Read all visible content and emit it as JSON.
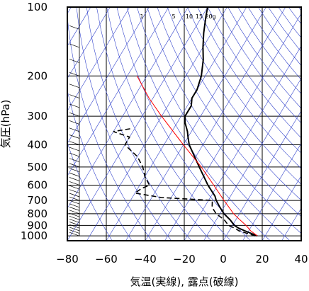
{
  "chart_data": {
    "type": "line",
    "subtype": "skew-t log-p thermodynamic diagram",
    "xlabel": "気温(実線), 露点(破線)",
    "ylabel": "気圧(hPa)",
    "xlim": [
      -80,
      40
    ],
    "ylim": [
      1050,
      100
    ],
    "y_scale": "log",
    "grid": true,
    "x_ticks": [
      -80,
      -60,
      -40,
      -20,
      0,
      20,
      40
    ],
    "y_ticks": [
      100,
      200,
      300,
      400,
      500,
      600,
      700,
      800,
      900,
      1000
    ],
    "mixing_ratio_labels": [
      "1",
      "5",
      "10",
      "15",
      "20g"
    ],
    "colors": {
      "temperature": "#000000",
      "dewpoint": "#000000",
      "parcel_path": "#ff0000",
      "isotherms_adiabats": "#3344cc",
      "grid": "#000000"
    },
    "series": [
      {
        "name": "気温",
        "style": "solid",
        "points": [
          {
            "p": 1000,
            "t": 16
          },
          {
            "p": 975,
            "t": 12
          },
          {
            "p": 950,
            "t": 8
          },
          {
            "p": 925,
            "t": 4
          },
          {
            "p": 900,
            "t": 1
          },
          {
            "p": 850,
            "t": -3
          },
          {
            "p": 800,
            "t": -8
          },
          {
            "p": 750,
            "t": -12
          },
          {
            "p": 700,
            "t": -16
          },
          {
            "p": 670,
            "t": -18
          },
          {
            "p": 600,
            "t": -25
          },
          {
            "p": 500,
            "t": -35
          },
          {
            "p": 400,
            "t": -47
          },
          {
            "p": 370,
            "t": -50
          },
          {
            "p": 350,
            "t": -52
          },
          {
            "p": 320,
            "t": -56
          },
          {
            "p": 300,
            "t": -58
          },
          {
            "p": 270,
            "t": -58
          },
          {
            "p": 250,
            "t": -60
          },
          {
            "p": 230,
            "t": -60
          },
          {
            "p": 200,
            "t": -62
          },
          {
            "p": 170,
            "t": -66
          },
          {
            "p": 150,
            "t": -70
          },
          {
            "p": 130,
            "t": -74
          },
          {
            "p": 110,
            "t": -78
          },
          {
            "p": 100,
            "t": -80
          }
        ]
      },
      {
        "name": "露点",
        "style": "dashed",
        "points": [
          {
            "p": 1000,
            "t": 15
          },
          {
            "p": 975,
            "t": 10
          },
          {
            "p": 950,
            "t": 5
          },
          {
            "p": 925,
            "t": 2
          },
          {
            "p": 900,
            "t": -2
          },
          {
            "p": 850,
            "t": -6
          },
          {
            "p": 800,
            "t": -12
          },
          {
            "p": 750,
            "t": -16
          },
          {
            "p": 700,
            "t": -18
          },
          {
            "p": 680,
            "t": -45
          },
          {
            "p": 650,
            "t": -60
          },
          {
            "p": 620,
            "t": -58
          },
          {
            "p": 600,
            "t": -55
          },
          {
            "p": 550,
            "t": -60
          },
          {
            "p": 500,
            "t": -64
          },
          {
            "p": 450,
            "t": -70
          },
          {
            "p": 400,
            "t": -80
          },
          {
            "p": 370,
            "t": -80
          },
          {
            "p": 350,
            "t": -90
          },
          {
            "p": 340,
            "t": -82
          }
        ]
      },
      {
        "name": "",
        "style": "parcel",
        "points": [
          {
            "p": 1000,
            "t": 16
          },
          {
            "p": 950,
            "t": 11
          },
          {
            "p": 900,
            "t": 7
          },
          {
            "p": 850,
            "t": 2
          },
          {
            "p": 800,
            "t": -3
          },
          {
            "p": 700,
            "t": -12
          },
          {
            "p": 600,
            "t": -22
          },
          {
            "p": 500,
            "t": -34
          },
          {
            "p": 400,
            "t": -50
          },
          {
            "p": 300,
            "t": -70
          },
          {
            "p": 250,
            "t": -82
          },
          {
            "p": 200,
            "t": -95
          }
        ]
      }
    ]
  }
}
